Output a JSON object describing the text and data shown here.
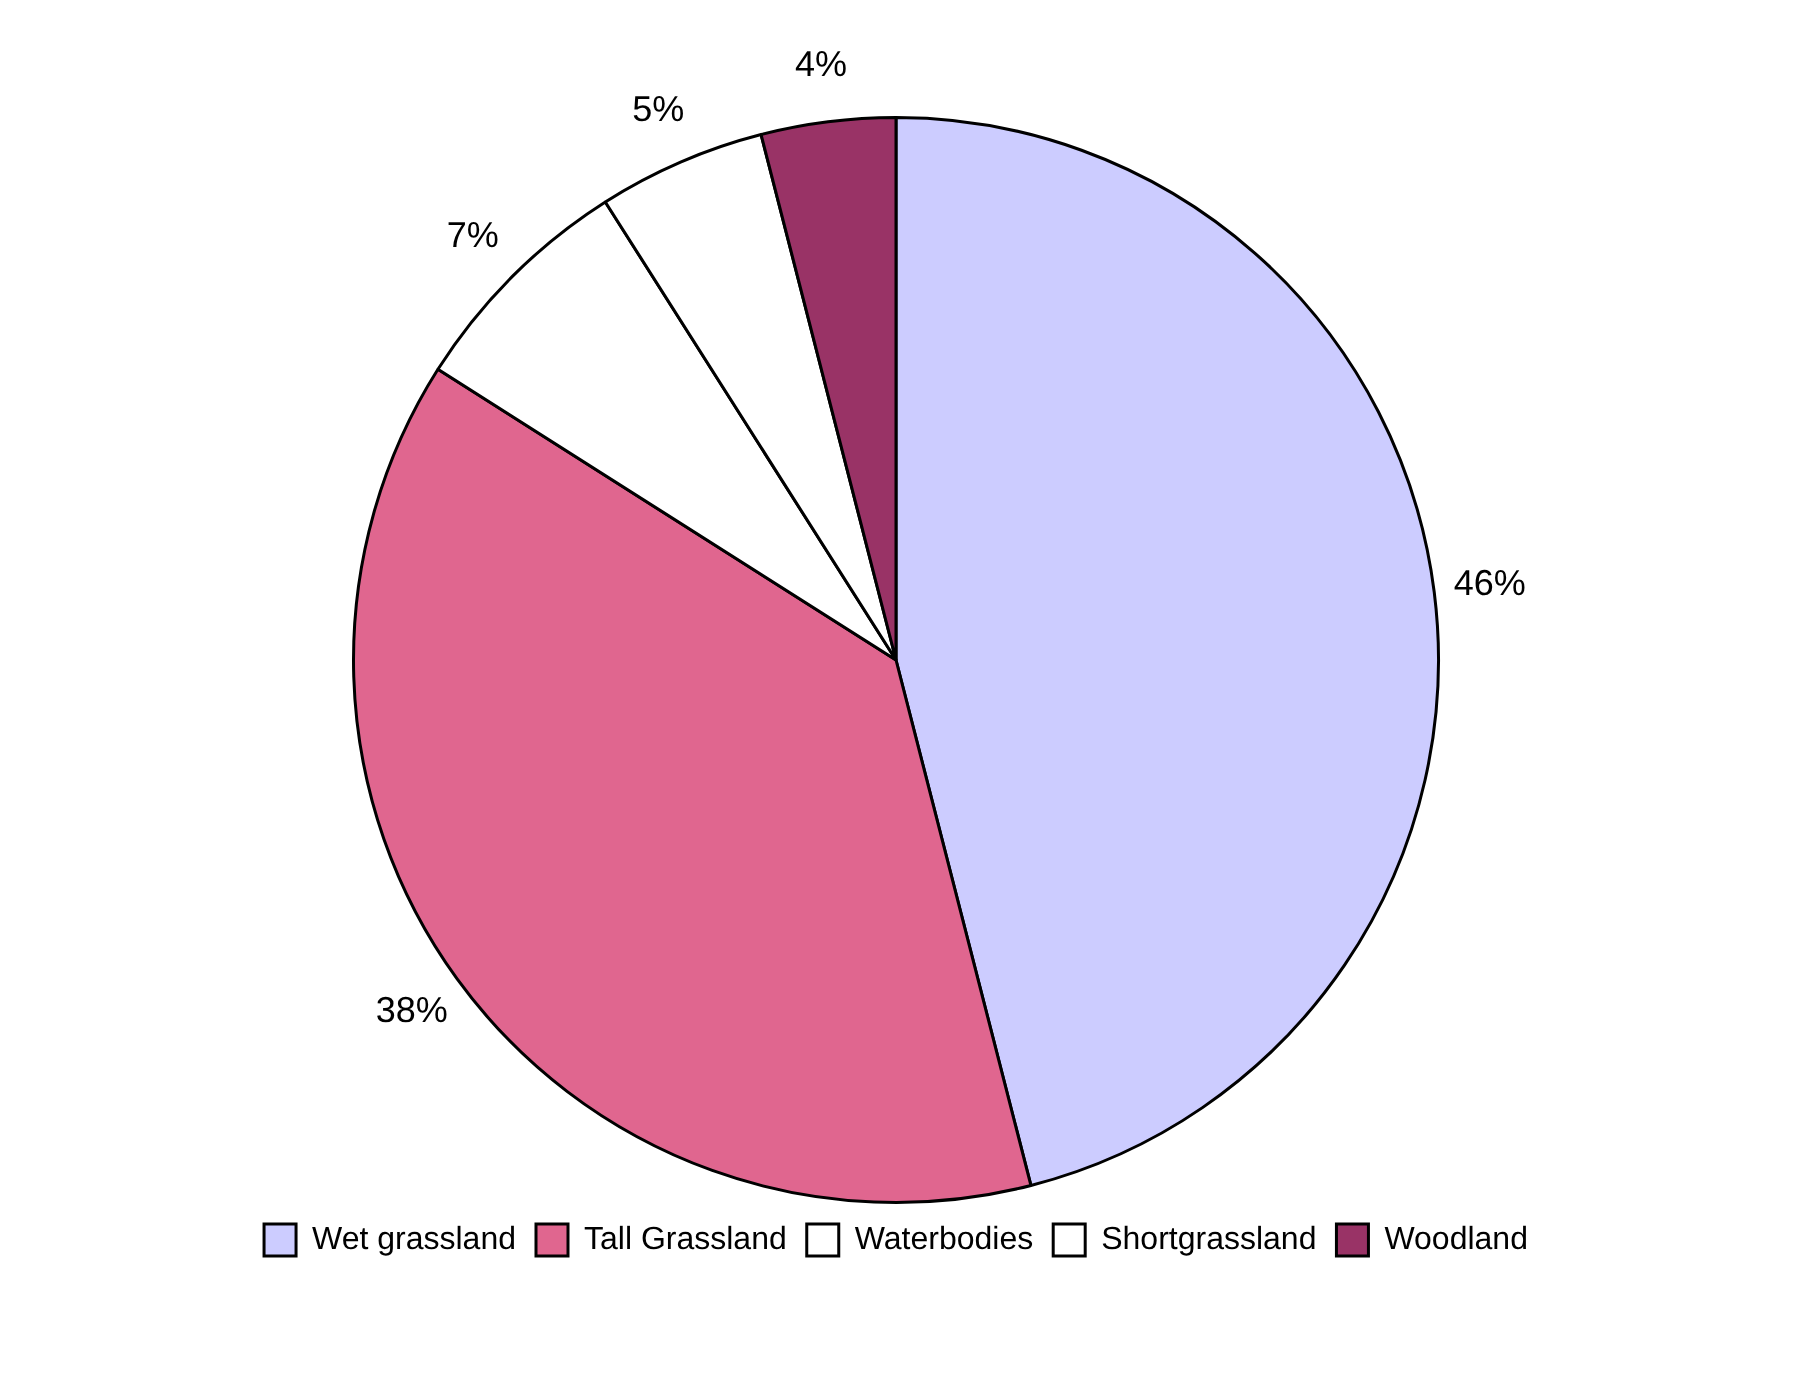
{
  "chart_data": {
    "type": "pie",
    "categories": [
      "Wet grassland",
      "Tall Grassland",
      "Waterbodies",
      "Shortgrassland",
      "Woodland"
    ],
    "values": [
      46,
      38,
      7,
      5,
      4
    ],
    "colors": [
      "#ccccff",
      "#e0668f",
      "#ffffff",
      "#ffffff",
      "#993366"
    ],
    "value_labels": [
      "46%",
      "38%",
      "7%",
      "5%",
      "4%"
    ],
    "legend": "bottom"
  }
}
